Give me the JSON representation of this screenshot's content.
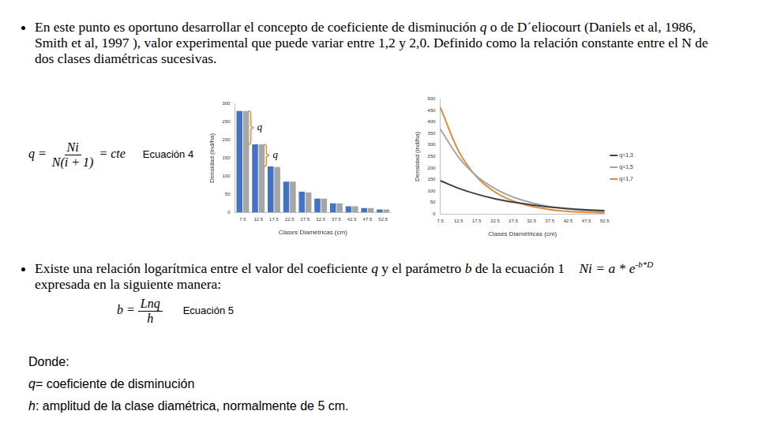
{
  "bullet1": [
    {
      "text": "En este punto es oportuno desarrollar el concepto de coeficiente de disminución "
    },
    {
      "text": "q",
      "italic": true
    },
    {
      "text": " o de D´eliocourt (Daniels et al, 1986, Smith et al, 1997 ), valor experimental que puede variar entre 1,2 y 2,0. Definido como la relación constante entre el N de dos clases diamétricas sucesivas."
    }
  ],
  "equation4": {
    "lhs": "q =",
    "numerator": "Ni",
    "denominator": "N(i + 1)",
    "rhs": "= cte",
    "label": "Ecuación 4"
  },
  "bullet2": {
    "before": [
      {
        "text": "Existe una relación logarítmica entre el valor del coeficiente "
      },
      {
        "text": "q",
        "italic": true
      },
      {
        "text": " y el parámetro "
      },
      {
        "text": "b",
        "italic": true
      },
      {
        "text": " de la ecuación 1 "
      }
    ],
    "equation1": {
      "base": "Ni = a * e",
      "exponent": "-b*D"
    },
    "after": "expresada en la siguiente manera:"
  },
  "equation5": {
    "lhs": "b =",
    "numerator": "Lnq",
    "denominator": "h",
    "label": "Ecuación 5"
  },
  "definitions": {
    "heading": "Donde:",
    "items": [
      [
        {
          "text": "q",
          "italic": true
        },
        {
          "text": "= coeficiente de disminución"
        }
      ],
      [
        {
          "text": "h",
          "italic": true
        },
        {
          "text": ": amplitud de la clase diamétrica, normalmente de 5 cm."
        }
      ]
    ]
  },
  "chart_data": [
    {
      "type": "bar",
      "categories": [
        "7.5",
        "12.5",
        "17.5",
        "22.5",
        "27.5",
        "32.5",
        "37.5",
        "42.5",
        "47.5",
        "52.5"
      ],
      "series": [
        {
          "color": "#4472c4",
          "values": [
            280,
            188,
            127,
            85,
            57,
            38,
            25,
            17,
            12,
            8
          ]
        },
        {
          "color": "#a6a6a6",
          "values": [
            280,
            188,
            125,
            85,
            55,
            38,
            25,
            17,
            12,
            8
          ]
        }
      ],
      "ylim": [
        0,
        300
      ],
      "yticks": [
        0,
        50,
        100,
        150,
        200,
        250,
        300
      ],
      "y_label": "Densidad (ind/ha)",
      "x_label": "Clases Diamétricas (cm)",
      "grid": false,
      "annotations": [
        "q",
        "q"
      ]
    },
    {
      "type": "line",
      "categories": [
        "7.5",
        "12.5",
        "17.5",
        "22.5",
        "27.5",
        "32.5",
        "37.5",
        "42.5",
        "47.5",
        "52.5"
      ],
      "series": [
        {
          "name": "q=1,3",
          "color": "#404040",
          "values": [
            145,
            112,
            86,
            66,
            51,
            39,
            30,
            23,
            18,
            14
          ]
        },
        {
          "name": "q=1,5",
          "color": "#a6a6a6",
          "values": [
            370,
            247,
            165,
            110,
            73,
            49,
            32,
            22,
            14,
            10
          ]
        },
        {
          "name": "q=1,7",
          "color": "#e08a3c",
          "values": [
            465,
            274,
            161,
            95,
            56,
            33,
            19,
            11,
            7,
            4
          ]
        }
      ],
      "ylim": [
        0,
        500
      ],
      "yticks": [
        0,
        50,
        100,
        150,
        200,
        250,
        300,
        350,
        400,
        450,
        500
      ],
      "y_label": "Densidad (ind/ha)",
      "x_label": "Clases Diamétricas (cm)",
      "grid": false,
      "legend": "right"
    }
  ]
}
